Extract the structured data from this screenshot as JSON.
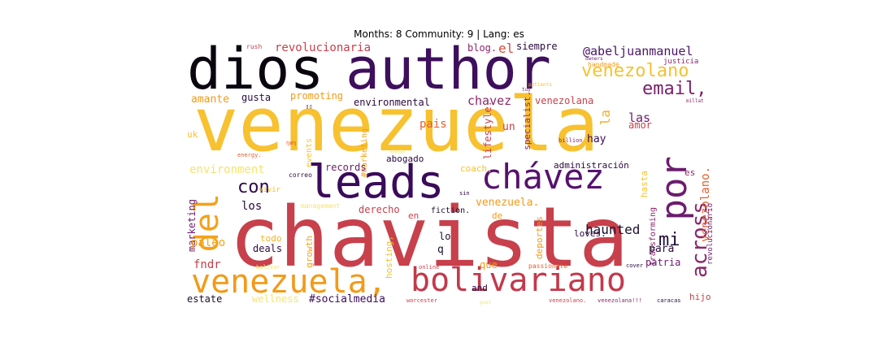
{
  "title": "Months: 8 Community: 9 | Lang: es",
  "words": [
    {
      "text": "chavista",
      "color": "#c7404b"
    },
    {
      "text": "venezuela",
      "color": "#f7c12f"
    },
    {
      "text": "author",
      "color": "#3d0f5c"
    },
    {
      "text": "dios",
      "color": "#0b0510"
    },
    {
      "text": "leads",
      "color": "#3a0b5a"
    },
    {
      "text": "chávez",
      "color": "#56126e"
    },
    {
      "text": "venezuela,",
      "color": "#f29a19"
    },
    {
      "text": "bolivariano",
      "color": "#c3394b"
    },
    {
      "text": "por",
      "color": "#6c1c6e"
    },
    {
      "text": "del",
      "color": "#f4a21b"
    },
    {
      "text": "across",
      "color": "#8a2769"
    },
    {
      "text": "venezolano",
      "color": "#f7c12f"
    },
    {
      "text": "email,",
      "color": "#7a206b"
    },
    {
      "text": "con",
      "color": "#2c0a48"
    },
    {
      "text": "mi",
      "color": "#1f0c35"
    },
    {
      "text": "haunted",
      "color": "#1c0f2e"
    },
    {
      "text": "venezolano.",
      "color": "#e55e2f"
    },
    {
      "text": "@abeljuanmanuel",
      "color": "#4a1468"
    },
    {
      "text": "revolucionaria",
      "color": "#c7404b"
    },
    {
      "text": "el",
      "color": "#d84c3e"
    },
    {
      "text": "siempre",
      "color": "#2a0a3e"
    },
    {
      "text": "blog.",
      "color": "#8a2769"
    },
    {
      "text": "amante",
      "color": "#f29a19"
    },
    {
      "text": "gusta",
      "color": "#2a0a3e"
    },
    {
      "text": "promoting",
      "color": "#f29a19"
    },
    {
      "text": "environmental",
      "color": "#2a0a3e"
    },
    {
      "text": "chavez",
      "color": "#8a2769"
    },
    {
      "text": "venezolana",
      "color": "#c7404b"
    },
    {
      "text": "las",
      "color": "#6c1c6e"
    },
    {
      "text": "la",
      "color": "#f4b020"
    },
    {
      "text": "amor",
      "color": "#c7404b"
    },
    {
      "text": "pais",
      "color": "#e55e2f"
    },
    {
      "text": "un",
      "color": "#c7404b"
    },
    {
      "text": "hay",
      "color": "#3a0b5a"
    },
    {
      "text": "lifestyle.",
      "color": "#c7404b"
    },
    {
      "text": "specialist.",
      "color": "#8a2769"
    },
    {
      "text": "abogado",
      "color": "#2a0a3e"
    },
    {
      "text": "#marketing",
      "color": "#f4a21b"
    },
    {
      "text": "events",
      "color": "#f7c12f"
    },
    {
      "text": "environment",
      "color": "#f7e36b"
    },
    {
      "text": "records",
      "color": "#6c1c6e"
    },
    {
      "text": "coach,",
      "color": "#f7c12f"
    },
    {
      "text": "administración",
      "color": "#2a0a3e"
    },
    {
      "text": "hasta",
      "color": "#f7c12f"
    },
    {
      "text": "es",
      "color": "#8a2769"
    },
    {
      "text": "transforming",
      "color": "#8a2769"
    },
    {
      "text": "revolucionario",
      "color": "#6c1c6e"
    },
    {
      "text": "los",
      "color": "#2a0a3e"
    },
    {
      "text": "derecho",
      "color": "#c7404b"
    },
    {
      "text": "venezuela.",
      "color": "#f29a19"
    },
    {
      "text": "fiction.",
      "color": "#1c0f2e"
    },
    {
      "text": "en",
      "color": "#c7404b"
    },
    {
      "text": "de",
      "color": "#f29a19"
    },
    {
      "text": "marketing",
      "color": "#6c1c6e"
    },
    {
      "text": "paleo",
      "color": "#f4a21b"
    },
    {
      "text": "fndr",
      "color": "#c7404b"
    },
    {
      "text": "todo",
      "color": "#f4b020"
    },
    {
      "text": "deals",
      "color": "#2a0a3e"
    },
    {
      "text": "growth",
      "color": "#f4a21b"
    },
    {
      "text": "hosting,",
      "color": "#f7c12f"
    },
    {
      "text": "lo",
      "color": "#1c0f2e"
    },
    {
      "text": "q",
      "color": "#1c0f2e"
    },
    {
      "text": "que",
      "color": "#f29a19"
    },
    {
      "text": "deportes",
      "color": "#f29a19"
    },
    {
      "text": "loves:",
      "color": "#2a0a3e"
    },
    {
      "text": "para",
      "color": "#2a0a3e"
    },
    {
      "text": "patria",
      "color": "#6c1c6e"
    },
    {
      "text": "estate",
      "color": "#1c0f2e"
    },
    {
      "text": "wellness",
      "color": "#f7e36b"
    },
    {
      "text": "#socialmedia",
      "color": "#3a0b5a"
    },
    {
      "text": "and",
      "color": "#2a0a3e"
    },
    {
      "text": "hijo",
      "color": "#c7404b"
    },
    {
      "text": "uk",
      "color": "#f7c12f"
    },
    {
      "text": "vivir",
      "color": "#f7c12f"
    },
    {
      "text": "correo",
      "color": "#2a0a3e"
    },
    {
      "text": "management",
      "color": "#f7e36b"
    },
    {
      "text": "sin",
      "color": "#2a0a3e"
    },
    {
      "text": "bolivar",
      "color": "#f7e36b"
    },
    {
      "text": "online",
      "color": "#c7404b"
    },
    {
      "text": "passionate",
      "color": "#e55e2f"
    },
    {
      "text": "cover",
      "color": "#2a0a3e"
    },
    {
      "text": "worcester",
      "color": "#c7404b"
    },
    {
      "text": "venezolano.",
      "color": "#c7404b"
    },
    {
      "text": "venezolana!!!",
      "color": "#8a2769"
    },
    {
      "text": "caracas",
      "color": "#2a0a3e"
    },
    {
      "text": "rush",
      "color": "#c7404b"
    },
    {
      "text": "owners",
      "color": "#6c1c6e"
    },
    {
      "text": "handmade",
      "color": "#f29a19"
    },
    {
      "text": "justicia",
      "color": "#8a2769"
    },
    {
      "text": "tuy",
      "color": "#6c1c6e"
    },
    {
      "text": "patients",
      "color": "#f7c12f"
    },
    {
      "text": "millat",
      "color": "#8a2769"
    },
    {
      "text": "billion",
      "color": "#8a2769"
    },
    {
      "text": "energy.",
      "color": "#e55e2f"
    },
    {
      "text": "ŋøŋ",
      "color": "#e55e2f"
    },
    {
      "text": "▯▯",
      "color": "#2a0a3e"
    },
    {
      "text": "maman",
      "color": "#f7e36b"
    },
    {
      "text": "goal",
      "color": "#f7e36b"
    }
  ]
}
